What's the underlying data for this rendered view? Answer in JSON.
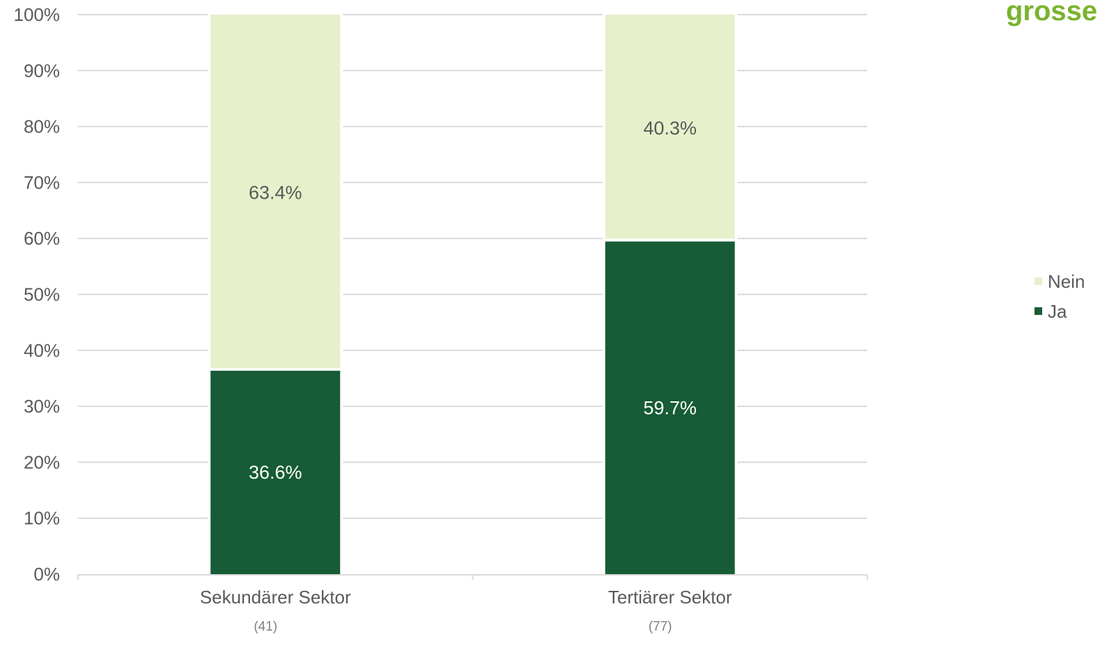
{
  "brand": {
    "text": "grosse",
    "color": "#7ab32e"
  },
  "chart_data": {
    "type": "bar",
    "stacked": true,
    "categories": [
      "Sekundärer Sektor",
      "Tertiärer Sektor"
    ],
    "category_counts": [
      "(41)",
      "(77)"
    ],
    "series": [
      {
        "name": "Ja",
        "values": [
          36.6,
          59.7
        ],
        "labels": [
          "36.6%",
          "59.7%"
        ],
        "color": "#175c36",
        "label_color": "#ffffff"
      },
      {
        "name": "Nein",
        "values": [
          63.4,
          40.3
        ],
        "labels": [
          "63.4%",
          "40.3%"
        ],
        "color": "#e6f0cb",
        "label_color": "#595959"
      }
    ],
    "y_ticks": [
      "0%",
      "10%",
      "20%",
      "30%",
      "40%",
      "50%",
      "60%",
      "70%",
      "80%",
      "90%",
      "100%"
    ],
    "ylim": [
      0,
      100
    ],
    "grid": true,
    "legend": {
      "position": "right",
      "order": [
        "Nein",
        "Ja"
      ]
    }
  }
}
